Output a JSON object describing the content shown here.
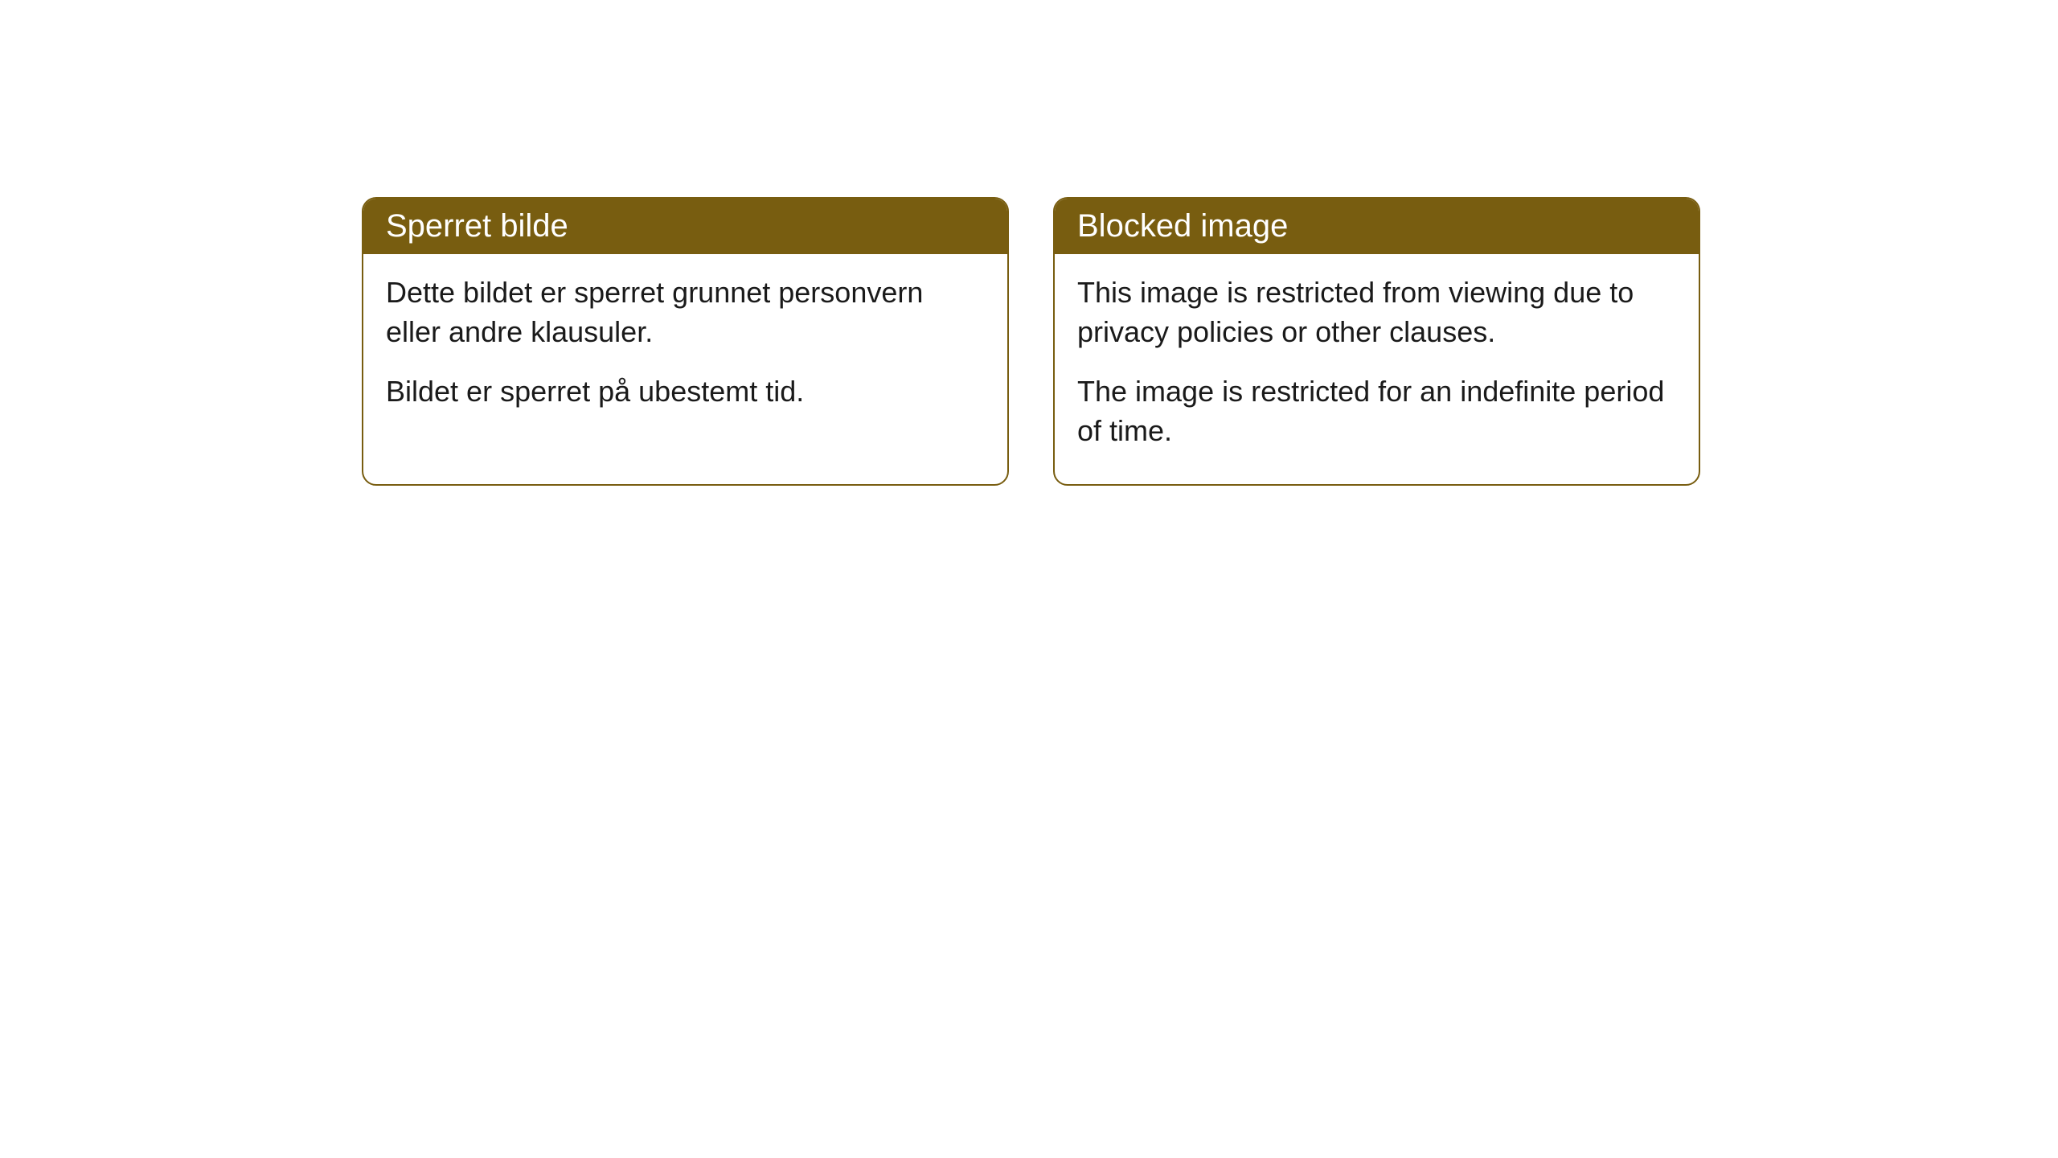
{
  "cards": [
    {
      "title": "Sperret bilde",
      "paragraph1": "Dette bildet er sperret grunnet personvern eller andre klausuler.",
      "paragraph2": "Bildet er sperret på ubestemt tid."
    },
    {
      "title": "Blocked image",
      "paragraph1": "This image is restricted from viewing due to privacy policies or other clauses.",
      "paragraph2": "The image is restricted for an indefinite period of time."
    }
  ],
  "styling": {
    "header_bg_color": "#785d10",
    "header_text_color": "#ffffff",
    "border_color": "#785d10",
    "body_text_color": "#1a1a1a",
    "card_bg_color": "#ffffff",
    "page_bg_color": "#ffffff",
    "border_radius": 18,
    "header_fontsize": 40,
    "body_fontsize": 36
  }
}
